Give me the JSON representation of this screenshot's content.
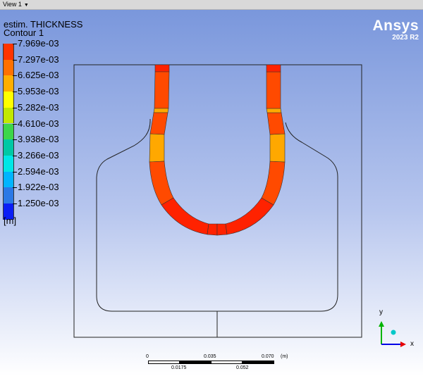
{
  "toolbar": {
    "view_label": "View 1"
  },
  "legend": {
    "title": "estim. THICKNESS",
    "subtitle": "Contour 1",
    "ticks": [
      "7.969e-03",
      "7.297e-03",
      "6.625e-03",
      "5.953e-03",
      "5.282e-03",
      "4.610e-03",
      "3.938e-03",
      "3.266e-03",
      "2.594e-03",
      "1.922e-03",
      "1.250e-03"
    ],
    "colors": [
      "#ff3300",
      "#ff7000",
      "#ffae00",
      "#ffff00",
      "#c2e800",
      "#3cd64a",
      "#00c8a5",
      "#00e6e6",
      "#00b4ff",
      "#2a78e6",
      "#0a1ef5"
    ],
    "unit": "[m]"
  },
  "brand": {
    "name": "Ansys",
    "version": "2023 R2"
  },
  "scale": {
    "top_labels": [
      "0",
      "0.035",
      "0.070"
    ],
    "unit": "(m)",
    "bottom_labels": [
      "0.0175",
      "0.052"
    ]
  },
  "triad": {
    "x_label": "x",
    "y_label": "y"
  }
}
